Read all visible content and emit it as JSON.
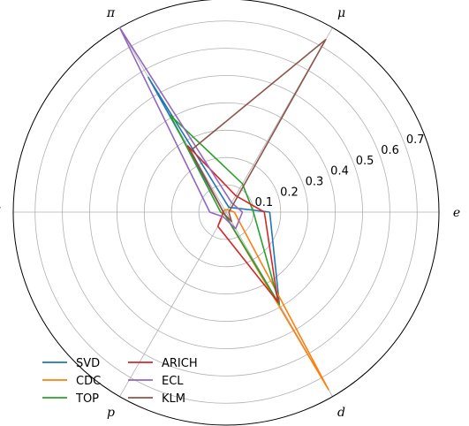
{
  "chart_data": {
    "type": "radar",
    "axes": [
      "e",
      "μ",
      "π",
      "K",
      "p",
      "d"
    ],
    "rlim": [
      0,
      0.78
    ],
    "radial_ticks": [
      0.1,
      0.2,
      0.3,
      0.4,
      0.5,
      0.6,
      0.7
    ],
    "grid": true,
    "legend_position": "bottom-left",
    "series": [
      {
        "name": "SVD",
        "color": "#1f77b4",
        "values": [
          0.16,
          0.02,
          0.57,
          0.01,
          0.01,
          0.39
        ]
      },
      {
        "name": "CDC",
        "color": "#ff7f0e",
        "values": [
          0.03,
          0.01,
          0.01,
          0.01,
          0.01,
          0.75
        ]
      },
      {
        "name": "TOP",
        "color": "#2ca02c",
        "values": [
          0.1,
          0.12,
          0.41,
          0.02,
          0.01,
          0.39
        ]
      },
      {
        "name": "ARICH",
        "color": "#d62728",
        "values": [
          0.14,
          0.07,
          0.28,
          0.01,
          0.06,
          0.38
        ]
      },
      {
        "name": "ECL",
        "color": "#9467bd",
        "values": [
          0.06,
          0.04,
          0.78,
          0.06,
          0.02,
          0.07
        ]
      },
      {
        "name": "KLM",
        "color": "#8c564b",
        "values": [
          0.01,
          0.73,
          0.26,
          0.01,
          0.01,
          0.04
        ]
      }
    ]
  }
}
